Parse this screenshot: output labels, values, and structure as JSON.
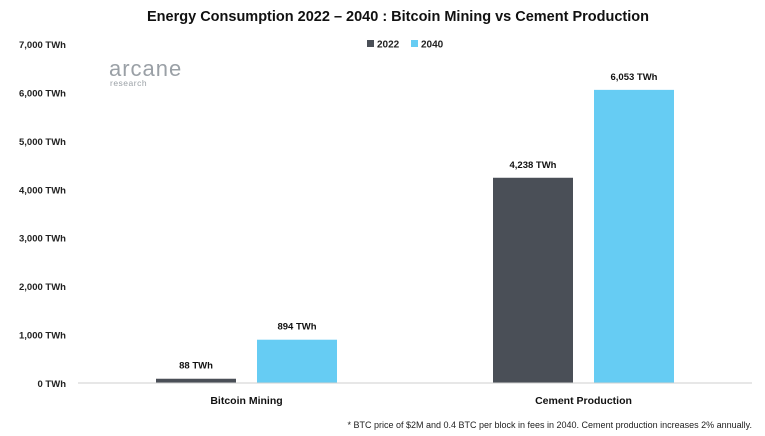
{
  "chart_data": {
    "type": "bar",
    "title": "Energy Consumption 2022   – 2040 : Bitcoin Mining vs Cement Production",
    "categories": [
      "Bitcoin Mining",
      "Cement Production"
    ],
    "series": [
      {
        "name": "2022",
        "color": "#4a4f57",
        "values": [
          88,
          4238
        ],
        "labels": [
          "88  TWh",
          "4,238  TWh"
        ]
      },
      {
        "name": "2040",
        "color": "#66ccf3",
        "values": [
          894,
          6053
        ],
        "labels": [
          "894  TWh",
          "6,053  TWh"
        ]
      }
    ],
    "ylim": [
      0,
      7000
    ],
    "yticks": [
      0,
      1000,
      2000,
      3000,
      4000,
      5000,
      6000,
      7000
    ],
    "ytick_labels": [
      "0 TWh",
      "1,000  TWh",
      "2,000  TWh",
      "3,000  TWh",
      "4,000  TWh",
      "5,000  TWh",
      "6,000  TWh",
      "7,000  TWh"
    ],
    "legend_position": "top-center",
    "grid": false,
    "xlabel": "",
    "ylabel": ""
  },
  "brand": {
    "name": "arcane",
    "sub": "research"
  },
  "footnote": "* BTC price of $2M and 0.4 BTC per block in fees in 2040. Cement production increases 2% annually."
}
